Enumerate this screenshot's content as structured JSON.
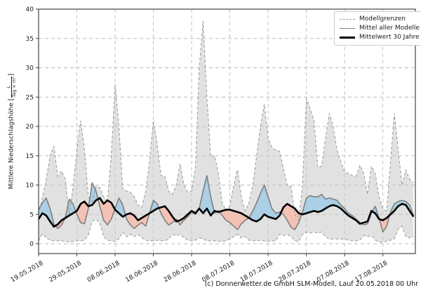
{
  "caption": "(c) Donnerwetter.de GmbH SLM-Modell, Lauf 20.05.2018 00 Uhr",
  "chart_data": {
    "type": "line",
    "title": "",
    "xlabel": "",
    "ylabel": "Mittlere Niederschlagshöhe [L/(Tag × m²)]",
    "ylabel_parts": {
      "prefix": "Mittlere Niederschlagshöhe [",
      "num": "L",
      "den": "Tag × m²",
      "suffix": "]"
    },
    "ylim": [
      0,
      40
    ],
    "yticks": [
      0,
      5,
      10,
      15,
      20,
      25,
      30,
      35,
      40
    ],
    "grid": true,
    "x_unit": "Tage ab 19.05.2018, ein Datenpunkt pro Tag",
    "xticks": [
      {
        "day": 0,
        "label": "19.05.2018"
      },
      {
        "day": 10,
        "label": "29.05.2018"
      },
      {
        "day": 20,
        "label": "08.06.2018"
      },
      {
        "day": 30,
        "label": "18.06.2018"
      },
      {
        "day": 40,
        "label": "28.06.2018"
      },
      {
        "day": 50,
        "label": "08.07.2018"
      },
      {
        "day": 60,
        "label": "18.07.2018"
      },
      {
        "day": 70,
        "label": "28.07.2018"
      },
      {
        "day": 80,
        "label": "07.08.2018"
      },
      {
        "day": 90,
        "label": "17.08.2018"
      }
    ],
    "legend": {
      "position": "top-right",
      "entries": [
        {
          "label": "Modellgrenzen",
          "style": "dashed-gray"
        },
        {
          "label": "Mittel aller Modelle",
          "style": "solid-gray"
        },
        {
          "label": "Mittelwert 30 Jahre",
          "style": "solid-black-thick"
        }
      ]
    },
    "colors": {
      "envelope_fill": "#c8c8c8",
      "envelope_border": "#999999",
      "model_mean_line": "#7f7f7f",
      "mean_30y_line": "#000000",
      "above_fill": "#a8cee4",
      "below_fill": "#f3c0b2",
      "grid_line": "#bbbbbb",
      "spine": "#444444",
      "tick_text": "#1a1a1a"
    },
    "series": {
      "env_max": [
        5.0,
        8.0,
        11.0,
        15.0,
        16.6,
        11.5,
        12.4,
        11.0,
        4.8,
        9.6,
        16.0,
        21.0,
        16.0,
        8.0,
        7.2,
        9.8,
        9.6,
        8.0,
        7.4,
        15.0,
        27.2,
        20.0,
        9.4,
        9.0,
        8.8,
        8.0,
        6.6,
        6.2,
        9.0,
        14.0,
        21.0,
        17.0,
        11.6,
        11.5,
        9.0,
        8.4,
        10.0,
        13.6,
        10.0,
        8.8,
        9.0,
        13.0,
        30.0,
        38.0,
        25.0,
        14.8,
        15.0,
        12.0,
        7.0,
        5.6,
        6.5,
        10.0,
        12.6,
        8.0,
        5.6,
        7.0,
        10.0,
        15.0,
        20.0,
        23.8,
        18.0,
        16.4,
        16.0,
        15.8,
        12.8,
        10.0,
        9.8,
        5.0,
        4.0,
        10.0,
        24.8,
        23.0,
        21.0,
        13.0,
        13.2,
        18.0,
        22.2,
        20.0,
        16.0,
        14.0,
        12.2,
        12.0,
        11.6,
        11.5,
        13.4,
        12.0,
        8.4,
        13.2,
        12.0,
        8.0,
        6.0,
        5.6,
        14.0,
        22.2,
        16.0,
        10.0,
        12.6,
        11.0,
        10.4
      ],
      "env_min": [
        0.5,
        1.7,
        1.0,
        0.6,
        0.5,
        0.5,
        0.5,
        0.4,
        0.3,
        0.4,
        0.5,
        0.5,
        0.6,
        1.5,
        3.8,
        4.2,
        3.5,
        1.2,
        0.6,
        0.5,
        0.4,
        0.8,
        2.0,
        1.2,
        1.6,
        1.2,
        1.6,
        1.0,
        0.6,
        0.5,
        0.5,
        0.6,
        0.5,
        0.5,
        0.8,
        1.6,
        1.4,
        1.6,
        1.0,
        0.6,
        0.5,
        0.6,
        1.0,
        0.8,
        0.5,
        0.5,
        0.5,
        0.4,
        0.4,
        0.5,
        0.8,
        1.2,
        1.6,
        1.0,
        1.2,
        0.6,
        0.5,
        0.5,
        0.6,
        0.5,
        0.4,
        0.5,
        0.5,
        1.6,
        1.4,
        1.6,
        1.2,
        0.5,
        0.4,
        1.6,
        2.0,
        1.8,
        2.0,
        1.8,
        2.0,
        1.2,
        0.8,
        0.8,
        0.8,
        0.8,
        0.8,
        0.6,
        0.5,
        0.5,
        0.6,
        1.4,
        1.2,
        1.4,
        0.6,
        0.3,
        0.3,
        0.4,
        0.6,
        0.8,
        2.5,
        3.0,
        1.2,
        1.0,
        1.2
      ],
      "model_mean": [
        5.8,
        7.0,
        7.8,
        6.0,
        3.4,
        2.6,
        3.2,
        4.4,
        7.6,
        6.8,
        5.0,
        3.6,
        3.4,
        6.0,
        10.4,
        9.0,
        6.4,
        4.0,
        3.2,
        4.2,
        6.0,
        7.8,
        6.6,
        4.2,
        3.2,
        2.6,
        3.2,
        3.6,
        3.0,
        5.2,
        7.4,
        6.8,
        5.2,
        4.0,
        3.2,
        3.6,
        4.2,
        3.2,
        4.0,
        4.6,
        5.4,
        5.0,
        6.0,
        9.0,
        11.6,
        8.0,
        5.2,
        5.6,
        4.8,
        4.0,
        3.6,
        3.0,
        2.4,
        3.4,
        4.0,
        4.4,
        5.6,
        7.0,
        8.6,
        10.0,
        8.0,
        6.0,
        5.2,
        5.4,
        5.0,
        4.0,
        2.8,
        2.4,
        3.6,
        5.4,
        7.8,
        8.2,
        8.0,
        8.0,
        8.4,
        7.6,
        7.8,
        7.6,
        7.4,
        6.6,
        6.0,
        5.2,
        4.8,
        4.2,
        3.6,
        3.2,
        3.4,
        5.2,
        6.4,
        4.4,
        2.0,
        3.0,
        5.4,
        6.8,
        7.2,
        7.4,
        7.2,
        6.6,
        4.8
      ],
      "mean_30y": [
        4.2,
        5.2,
        4.8,
        3.8,
        2.9,
        3.3,
        4.0,
        4.4,
        4.8,
        5.2,
        5.6,
        6.8,
        7.2,
        6.4,
        6.6,
        7.4,
        7.8,
        6.8,
        7.4,
        7.0,
        5.8,
        5.2,
        4.6,
        5.0,
        5.2,
        4.8,
        4.0,
        4.4,
        4.8,
        5.2,
        5.6,
        6.0,
        6.2,
        6.4,
        5.6,
        4.6,
        3.8,
        4.0,
        4.4,
        5.0,
        5.6,
        5.2,
        6.0,
        5.2,
        6.0,
        4.8,
        5.6,
        5.4,
        5.6,
        5.8,
        5.8,
        5.6,
        5.4,
        5.2,
        4.8,
        4.4,
        4.0,
        3.8,
        4.2,
        5.0,
        4.6,
        4.4,
        4.2,
        4.8,
        6.2,
        6.8,
        6.4,
        6.0,
        5.2,
        5.0,
        5.2,
        5.4,
        5.6,
        5.4,
        5.6,
        6.0,
        6.4,
        6.6,
        6.4,
        6.0,
        5.4,
        4.8,
        4.4,
        4.0,
        3.4,
        3.6,
        3.8,
        5.6,
        5.2,
        4.2,
        4.0,
        4.4,
        5.0,
        5.6,
        6.4,
        6.8,
        6.6,
        5.6,
        4.6
      ]
    }
  }
}
